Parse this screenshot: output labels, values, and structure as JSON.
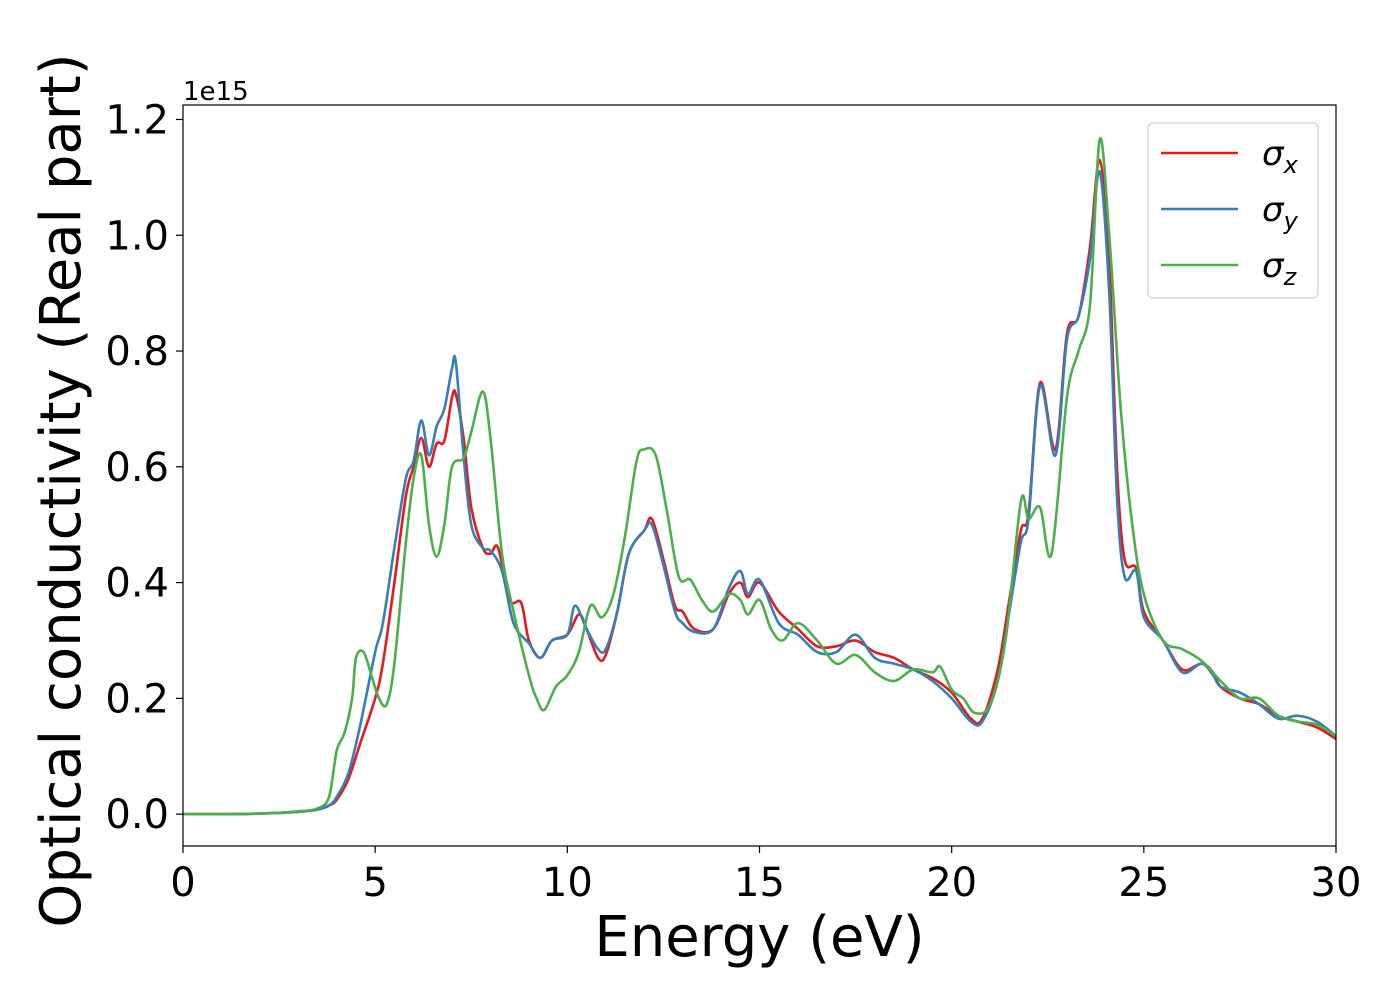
{
  "chart_data": {
    "type": "line",
    "xlabel": "Energy (eV)",
    "ylabel": "Optical conductivity (Real part)",
    "y_offset_label": "1e15",
    "xlim": [
      0,
      30
    ],
    "ylim": [
      -0.055,
      1.225
    ],
    "x_ticks": [
      0,
      5,
      10,
      15,
      20,
      25,
      30
    ],
    "x_tick_labels": [
      "0",
      "5",
      "10",
      "15",
      "20",
      "25",
      "30"
    ],
    "y_ticks": [
      0.0,
      0.2,
      0.4,
      0.6,
      0.8,
      1.0,
      1.2
    ],
    "y_tick_labels": [
      "0.0",
      "0.2",
      "0.4",
      "0.6",
      "0.8",
      "1.0",
      "1.2"
    ],
    "grid": false,
    "legend_position": "top-right",
    "series": [
      {
        "name": "σx",
        "symbol": "σ",
        "subscript": "x",
        "color": "#e41a1c",
        "points": [
          [
            0,
            0.0
          ],
          [
            1,
            0.0
          ],
          [
            2,
            0.001
          ],
          [
            3,
            0.004
          ],
          [
            3.5,
            0.008
          ],
          [
            3.8,
            0.015
          ],
          [
            4.0,
            0.025
          ],
          [
            4.3,
            0.06
          ],
          [
            4.6,
            0.12
          ],
          [
            5.0,
            0.2
          ],
          [
            5.2,
            0.26
          ],
          [
            5.5,
            0.4
          ],
          [
            5.8,
            0.55
          ],
          [
            6.0,
            0.6
          ],
          [
            6.2,
            0.65
          ],
          [
            6.4,
            0.6
          ],
          [
            6.6,
            0.64
          ],
          [
            6.8,
            0.645
          ],
          [
            7.0,
            0.72
          ],
          [
            7.1,
            0.725
          ],
          [
            7.3,
            0.65
          ],
          [
            7.5,
            0.53
          ],
          [
            7.8,
            0.46
          ],
          [
            8.0,
            0.45
          ],
          [
            8.2,
            0.46
          ],
          [
            8.5,
            0.37
          ],
          [
            8.8,
            0.365
          ],
          [
            9.0,
            0.3
          ],
          [
            9.3,
            0.27
          ],
          [
            9.6,
            0.3
          ],
          [
            10.0,
            0.31
          ],
          [
            10.3,
            0.345
          ],
          [
            10.5,
            0.32
          ],
          [
            10.8,
            0.27
          ],
          [
            11.0,
            0.275
          ],
          [
            11.3,
            0.35
          ],
          [
            11.6,
            0.45
          ],
          [
            12.0,
            0.49
          ],
          [
            12.2,
            0.51
          ],
          [
            12.5,
            0.44
          ],
          [
            12.8,
            0.36
          ],
          [
            13.0,
            0.35
          ],
          [
            13.3,
            0.32
          ],
          [
            13.8,
            0.32
          ],
          [
            14.2,
            0.38
          ],
          [
            14.5,
            0.4
          ],
          [
            14.7,
            0.375
          ],
          [
            15.0,
            0.4
          ],
          [
            15.5,
            0.35
          ],
          [
            16.0,
            0.32
          ],
          [
            16.5,
            0.29
          ],
          [
            17.0,
            0.29
          ],
          [
            17.5,
            0.3
          ],
          [
            18.0,
            0.28
          ],
          [
            18.5,
            0.27
          ],
          [
            19.0,
            0.25
          ],
          [
            19.5,
            0.235
          ],
          [
            20.0,
            0.21
          ],
          [
            20.5,
            0.165
          ],
          [
            20.8,
            0.165
          ],
          [
            21.2,
            0.25
          ],
          [
            21.5,
            0.37
          ],
          [
            21.8,
            0.49
          ],
          [
            22.0,
            0.52
          ],
          [
            22.3,
            0.745
          ],
          [
            22.7,
            0.63
          ],
          [
            23.0,
            0.83
          ],
          [
            23.3,
            0.86
          ],
          [
            23.6,
            0.98
          ],
          [
            23.85,
            1.13
          ],
          [
            24.1,
            0.95
          ],
          [
            24.3,
            0.6
          ],
          [
            24.5,
            0.44
          ],
          [
            24.8,
            0.425
          ],
          [
            25.0,
            0.35
          ],
          [
            25.5,
            0.3
          ],
          [
            26.0,
            0.25
          ],
          [
            26.5,
            0.26
          ],
          [
            26.8,
            0.245
          ],
          [
            27.0,
            0.22
          ],
          [
            27.5,
            0.2
          ],
          [
            28.0,
            0.19
          ],
          [
            28.5,
            0.17
          ],
          [
            29.0,
            0.16
          ],
          [
            29.5,
            0.15
          ],
          [
            30.0,
            0.13
          ]
        ]
      },
      {
        "name": "σy",
        "symbol": "σ",
        "subscript": "y",
        "color": "#377eb8",
        "points": [
          [
            0,
            0.0
          ],
          [
            1,
            0.0
          ],
          [
            2,
            0.001
          ],
          [
            3,
            0.004
          ],
          [
            3.5,
            0.008
          ],
          [
            3.8,
            0.015
          ],
          [
            4.0,
            0.03
          ],
          [
            4.3,
            0.07
          ],
          [
            4.6,
            0.15
          ],
          [
            5.0,
            0.28
          ],
          [
            5.2,
            0.33
          ],
          [
            5.5,
            0.46
          ],
          [
            5.8,
            0.58
          ],
          [
            6.0,
            0.61
          ],
          [
            6.2,
            0.68
          ],
          [
            6.4,
            0.62
          ],
          [
            6.6,
            0.67
          ],
          [
            6.8,
            0.7
          ],
          [
            7.0,
            0.77
          ],
          [
            7.1,
            0.78
          ],
          [
            7.3,
            0.62
          ],
          [
            7.5,
            0.5
          ],
          [
            7.8,
            0.46
          ],
          [
            8.0,
            0.455
          ],
          [
            8.3,
            0.42
          ],
          [
            8.6,
            0.33
          ],
          [
            9.0,
            0.295
          ],
          [
            9.3,
            0.27
          ],
          [
            9.6,
            0.3
          ],
          [
            10.0,
            0.31
          ],
          [
            10.2,
            0.36
          ],
          [
            10.5,
            0.32
          ],
          [
            10.8,
            0.285
          ],
          [
            11.0,
            0.285
          ],
          [
            11.3,
            0.35
          ],
          [
            11.6,
            0.45
          ],
          [
            12.0,
            0.49
          ],
          [
            12.2,
            0.5
          ],
          [
            12.5,
            0.43
          ],
          [
            12.8,
            0.35
          ],
          [
            13.0,
            0.33
          ],
          [
            13.3,
            0.315
          ],
          [
            13.8,
            0.32
          ],
          [
            14.2,
            0.39
          ],
          [
            14.5,
            0.42
          ],
          [
            14.7,
            0.38
          ],
          [
            15.0,
            0.405
          ],
          [
            15.5,
            0.33
          ],
          [
            16.0,
            0.31
          ],
          [
            16.5,
            0.28
          ],
          [
            17.0,
            0.28
          ],
          [
            17.5,
            0.31
          ],
          [
            18.0,
            0.27
          ],
          [
            18.5,
            0.26
          ],
          [
            19.0,
            0.25
          ],
          [
            19.5,
            0.23
          ],
          [
            20.0,
            0.2
          ],
          [
            20.5,
            0.16
          ],
          [
            20.8,
            0.16
          ],
          [
            21.2,
            0.23
          ],
          [
            21.5,
            0.35
          ],
          [
            21.8,
            0.47
          ],
          [
            22.0,
            0.51
          ],
          [
            22.3,
            0.74
          ],
          [
            22.7,
            0.62
          ],
          [
            23.0,
            0.82
          ],
          [
            23.3,
            0.86
          ],
          [
            23.6,
            0.96
          ],
          [
            23.85,
            1.11
          ],
          [
            24.1,
            0.9
          ],
          [
            24.3,
            0.55
          ],
          [
            24.5,
            0.41
          ],
          [
            24.8,
            0.42
          ],
          [
            25.0,
            0.34
          ],
          [
            25.5,
            0.3
          ],
          [
            26.0,
            0.245
          ],
          [
            26.5,
            0.26
          ],
          [
            26.8,
            0.24
          ],
          [
            27.0,
            0.22
          ],
          [
            27.5,
            0.21
          ],
          [
            28.0,
            0.19
          ],
          [
            28.5,
            0.165
          ],
          [
            29.0,
            0.17
          ],
          [
            29.5,
            0.16
          ],
          [
            30.0,
            0.135
          ]
        ]
      },
      {
        "name": "σz",
        "symbol": "σ",
        "subscript": "z",
        "color": "#4daf4a",
        "points": [
          [
            0,
            0.0
          ],
          [
            1,
            0.0
          ],
          [
            2,
            0.001
          ],
          [
            3,
            0.005
          ],
          [
            3.5,
            0.01
          ],
          [
            3.8,
            0.03
          ],
          [
            4.0,
            0.11
          ],
          [
            4.2,
            0.14
          ],
          [
            4.4,
            0.2
          ],
          [
            4.5,
            0.27
          ],
          [
            4.7,
            0.28
          ],
          [
            4.9,
            0.24
          ],
          [
            5.1,
            0.2
          ],
          [
            5.3,
            0.19
          ],
          [
            5.5,
            0.26
          ],
          [
            5.8,
            0.47
          ],
          [
            6.0,
            0.58
          ],
          [
            6.2,
            0.62
          ],
          [
            6.4,
            0.5
          ],
          [
            6.6,
            0.445
          ],
          [
            6.8,
            0.5
          ],
          [
            7.0,
            0.6
          ],
          [
            7.3,
            0.615
          ],
          [
            7.5,
            0.66
          ],
          [
            7.8,
            0.73
          ],
          [
            8.0,
            0.65
          ],
          [
            8.3,
            0.45
          ],
          [
            8.6,
            0.35
          ],
          [
            9.0,
            0.24
          ],
          [
            9.2,
            0.2
          ],
          [
            9.4,
            0.18
          ],
          [
            9.7,
            0.22
          ],
          [
            10.0,
            0.24
          ],
          [
            10.3,
            0.28
          ],
          [
            10.6,
            0.36
          ],
          [
            10.9,
            0.34
          ],
          [
            11.2,
            0.38
          ],
          [
            11.5,
            0.48
          ],
          [
            11.8,
            0.61
          ],
          [
            12.0,
            0.63
          ],
          [
            12.3,
            0.62
          ],
          [
            12.6,
            0.52
          ],
          [
            12.9,
            0.41
          ],
          [
            13.2,
            0.405
          ],
          [
            13.5,
            0.37
          ],
          [
            13.8,
            0.35
          ],
          [
            14.2,
            0.38
          ],
          [
            14.5,
            0.37
          ],
          [
            14.7,
            0.345
          ],
          [
            15.0,
            0.37
          ],
          [
            15.3,
            0.32
          ],
          [
            15.6,
            0.3
          ],
          [
            16.0,
            0.33
          ],
          [
            16.5,
            0.3
          ],
          [
            17.0,
            0.26
          ],
          [
            17.5,
            0.275
          ],
          [
            18.0,
            0.245
          ],
          [
            18.5,
            0.23
          ],
          [
            19.0,
            0.25
          ],
          [
            19.5,
            0.245
          ],
          [
            19.7,
            0.255
          ],
          [
            20.0,
            0.215
          ],
          [
            20.3,
            0.2
          ],
          [
            20.6,
            0.175
          ],
          [
            21.0,
            0.19
          ],
          [
            21.4,
            0.3
          ],
          [
            21.8,
            0.54
          ],
          [
            22.0,
            0.51
          ],
          [
            22.3,
            0.53
          ],
          [
            22.6,
            0.45
          ],
          [
            23.0,
            0.72
          ],
          [
            23.3,
            0.8
          ],
          [
            23.6,
            0.88
          ],
          [
            23.85,
            1.165
          ],
          [
            24.1,
            1.0
          ],
          [
            24.4,
            0.7
          ],
          [
            24.7,
            0.5
          ],
          [
            25.0,
            0.38
          ],
          [
            25.5,
            0.3
          ],
          [
            26.0,
            0.285
          ],
          [
            26.5,
            0.265
          ],
          [
            27.0,
            0.23
          ],
          [
            27.5,
            0.2
          ],
          [
            28.0,
            0.2
          ],
          [
            28.5,
            0.17
          ],
          [
            29.0,
            0.16
          ],
          [
            29.5,
            0.155
          ],
          [
            30.0,
            0.135
          ]
        ]
      }
    ]
  }
}
